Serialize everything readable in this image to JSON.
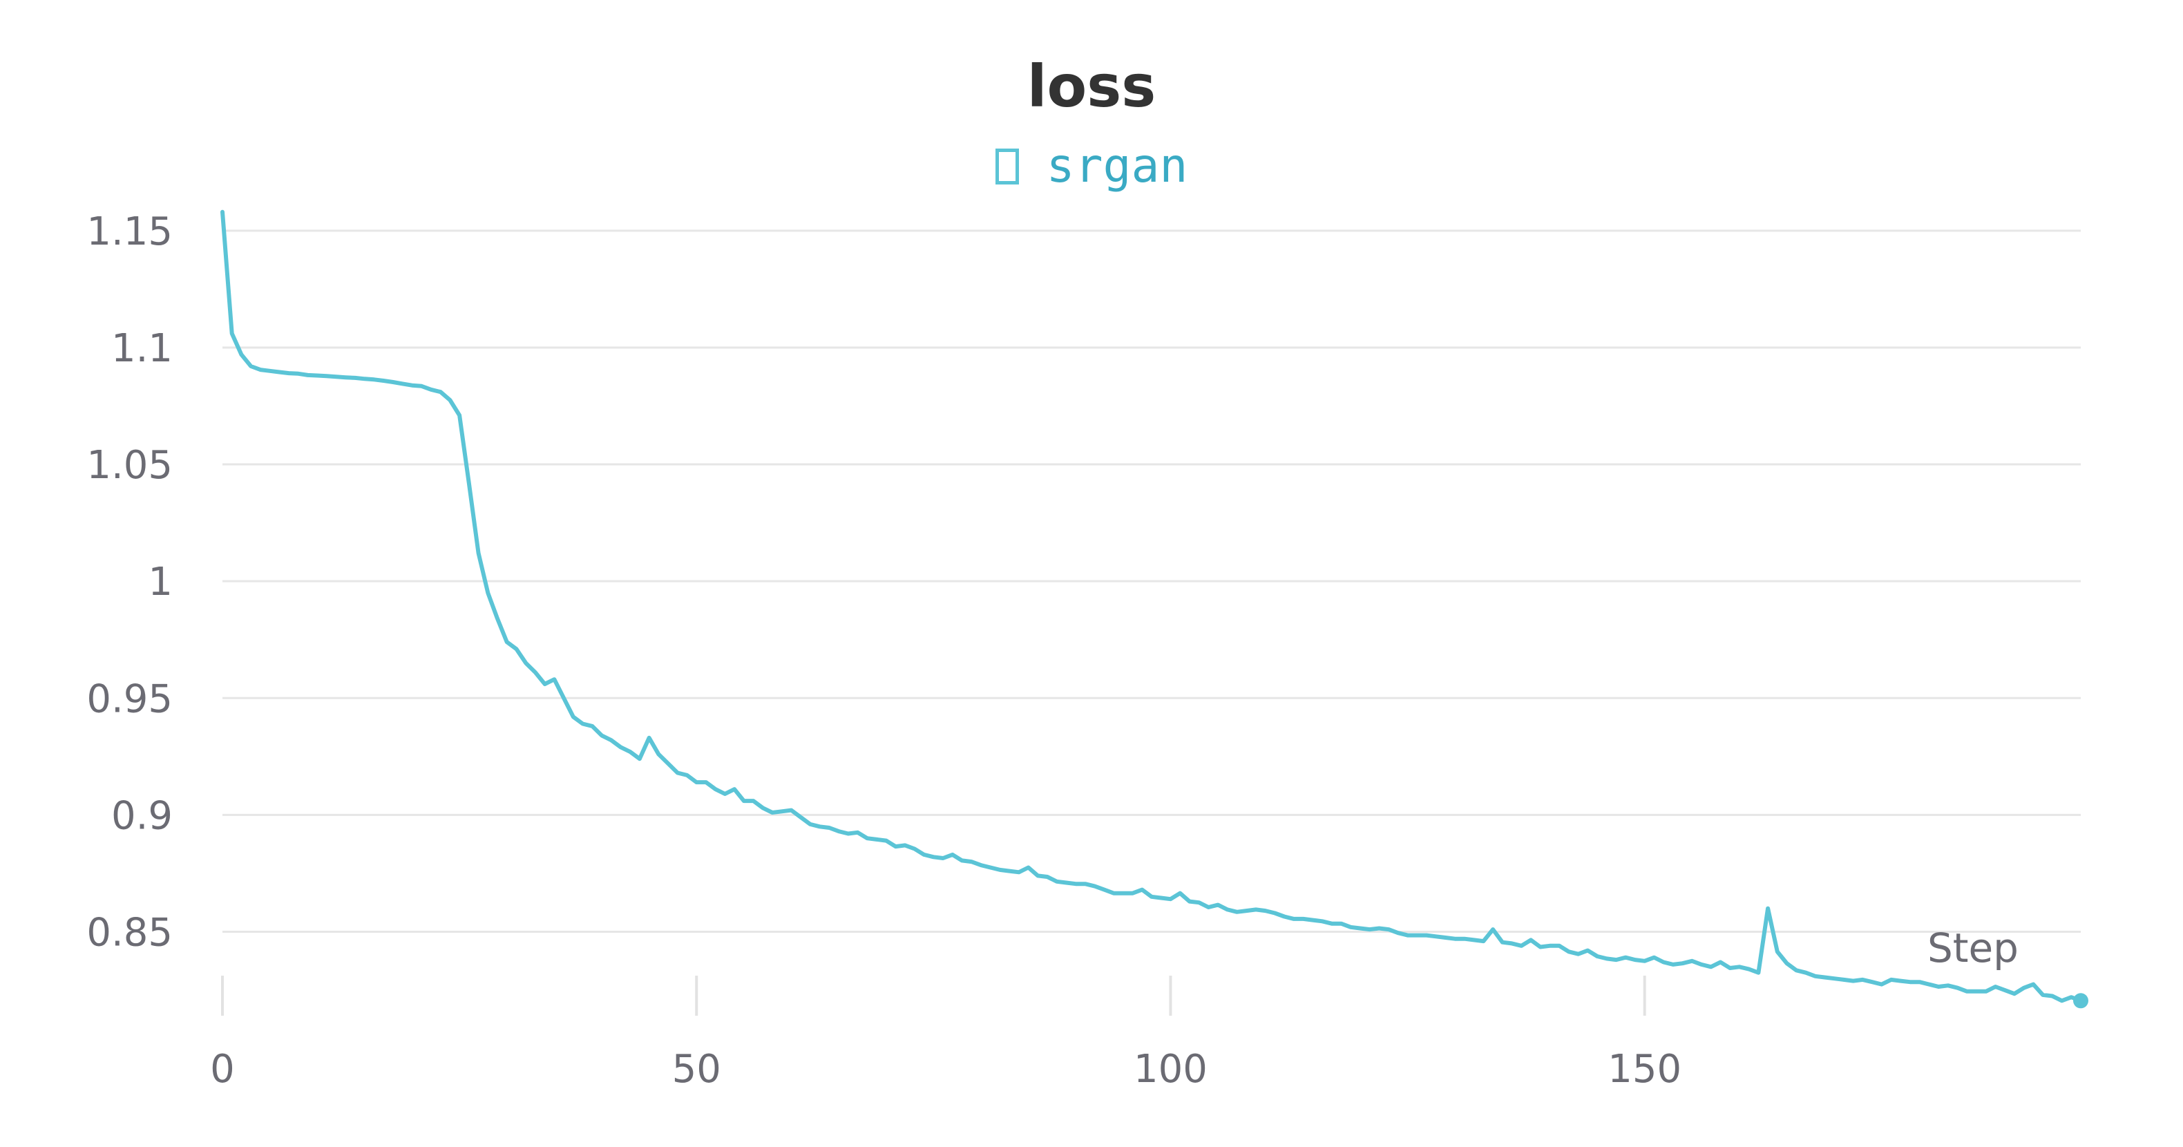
{
  "chart_data": {
    "type": "line",
    "title": "loss",
    "xlabel": "Step",
    "ylabel": "",
    "xlim": [
      0,
      196
    ],
    "ylim": [
      0.82,
      1.16
    ],
    "xticks": [
      0,
      50,
      100,
      150
    ],
    "yticks": [
      0.85,
      0.9,
      0.95,
      1,
      1.05,
      1.1,
      1.15
    ],
    "ytick_labels": [
      "0.85",
      "0.9",
      "0.95",
      "1",
      "1.05",
      "1.1",
      "1.15"
    ],
    "grid": "horizontal",
    "legend": "top-center",
    "color": "#5bc4d6",
    "series": [
      {
        "name": "srgan",
        "x": [
          0,
          1,
          2,
          3,
          4,
          5,
          6,
          7,
          8,
          9,
          10,
          11,
          12,
          13,
          14,
          15,
          16,
          17,
          18,
          19,
          20,
          21,
          22,
          23,
          24,
          25,
          26,
          27,
          28,
          29,
          30,
          31,
          32,
          33,
          34,
          35,
          36,
          37,
          38,
          39,
          40,
          41,
          42,
          43,
          44,
          45,
          46,
          47,
          48,
          49,
          50,
          51,
          52,
          53,
          54,
          55,
          56,
          57,
          58,
          59,
          60,
          61,
          62,
          63,
          64,
          65,
          66,
          67,
          68,
          69,
          70,
          71,
          72,
          73,
          74,
          75,
          76,
          77,
          78,
          79,
          80,
          81,
          82,
          83,
          84,
          85,
          86,
          87,
          88,
          89,
          90,
          91,
          92,
          93,
          94,
          95,
          96,
          97,
          98,
          99,
          100,
          101,
          102,
          103,
          104,
          105,
          106,
          107,
          108,
          109,
          110,
          111,
          112,
          113,
          114,
          115,
          116,
          117,
          118,
          119,
          120,
          121,
          122,
          123,
          124,
          125,
          126,
          127,
          128,
          129,
          130,
          131,
          132,
          133,
          134,
          135,
          136,
          137,
          138,
          139,
          140,
          141,
          142,
          143,
          144,
          145,
          146,
          147,
          148,
          149,
          150,
          151,
          152,
          153,
          154,
          155,
          156,
          157,
          158,
          159,
          160,
          161,
          162,
          163,
          164,
          165,
          166,
          167,
          168,
          169,
          170,
          171,
          172,
          173,
          174,
          175,
          176,
          177,
          178,
          179,
          180,
          181,
          182,
          183,
          184,
          185,
          186,
          187,
          188,
          189,
          190,
          191,
          192,
          193,
          194,
          195,
          196
        ],
        "y": [
          1.158,
          1.106,
          1.097,
          1.092,
          1.0905,
          1.09,
          1.0895,
          1.089,
          1.0888,
          1.0882,
          1.088,
          1.0878,
          1.0875,
          1.0872,
          1.087,
          1.0866,
          1.0863,
          1.0858,
          1.0852,
          1.0845,
          1.0838,
          1.0835,
          1.082,
          1.081,
          1.0775,
          1.071,
          1.042,
          1.012,
          0.995,
          0.984,
          0.974,
          0.971,
          0.965,
          0.961,
          0.956,
          0.958,
          0.95,
          0.942,
          0.939,
          0.938,
          0.934,
          0.932,
          0.929,
          0.927,
          0.924,
          0.933,
          0.926,
          0.922,
          0.918,
          0.917,
          0.914,
          0.914,
          0.911,
          0.909,
          0.911,
          0.906,
          0.906,
          0.903,
          0.901,
          0.9015,
          0.902,
          0.899,
          0.896,
          0.895,
          0.8945,
          0.893,
          0.892,
          0.8925,
          0.89,
          0.8895,
          0.889,
          0.8865,
          0.887,
          0.8855,
          0.883,
          0.882,
          0.8815,
          0.883,
          0.8805,
          0.88,
          0.8785,
          0.8775,
          0.8765,
          0.876,
          0.8755,
          0.8775,
          0.874,
          0.8735,
          0.8715,
          0.871,
          0.8705,
          0.8705,
          0.8695,
          0.868,
          0.8665,
          0.8665,
          0.8665,
          0.868,
          0.865,
          0.8645,
          0.864,
          0.8665,
          0.863,
          0.8625,
          0.8605,
          0.8615,
          0.8595,
          0.8585,
          0.859,
          0.8595,
          0.859,
          0.858,
          0.8565,
          0.8555,
          0.8555,
          0.855,
          0.8545,
          0.8535,
          0.8535,
          0.852,
          0.8515,
          0.851,
          0.8515,
          0.851,
          0.8495,
          0.8485,
          0.8485,
          0.8485,
          0.848,
          0.8475,
          0.847,
          0.847,
          0.8465,
          0.846,
          0.851,
          0.8455,
          0.845,
          0.844,
          0.8465,
          0.8435,
          0.844,
          0.844,
          0.8415,
          0.8405,
          0.842,
          0.8395,
          0.8385,
          0.838,
          0.839,
          0.838,
          0.8375,
          0.839,
          0.837,
          0.836,
          0.8365,
          0.8375,
          0.836,
          0.835,
          0.837,
          0.8345,
          0.835,
          0.834,
          0.8325,
          0.86,
          0.8415,
          0.8365,
          0.8335,
          0.8325,
          0.831,
          0.8305,
          0.83,
          0.8295,
          0.829,
          0.8295,
          0.8285,
          0.8275,
          0.8295,
          0.829,
          0.8285,
          0.8285,
          0.8275,
          0.8265,
          0.827,
          0.826,
          0.8245,
          0.8245,
          0.8245,
          0.8265,
          0.825,
          0.8235,
          0.826,
          0.8275,
          0.823,
          0.8225,
          0.8205,
          0.822,
          0.8205
        ]
      }
    ]
  }
}
